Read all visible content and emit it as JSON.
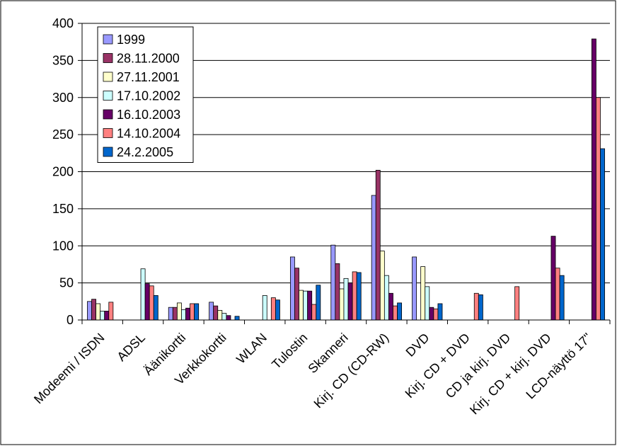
{
  "chart_data": {
    "type": "bar",
    "title": "",
    "xlabel": "",
    "ylabel": "",
    "ylim": [
      0,
      400
    ],
    "yticks": [
      0,
      50,
      100,
      150,
      200,
      250,
      300,
      350,
      400
    ],
    "grid": true,
    "legend_position": "top-left",
    "categories": [
      "Modeemi / ISDN",
      "ADSL",
      "Äänikortti",
      "Verkkokortti",
      "WLAN",
      "Tulostin",
      "Skanneri",
      "Kirj. CD (CD-RW)",
      "DVD",
      "Kirj. CD + DVD",
      "CD ja kirj. DVD",
      "Kirj. CD + kirj. DVD",
      "LCD-näyttö 17\""
    ],
    "series": [
      {
        "name": "1999",
        "color": "#9999ff",
        "values": [
          25,
          null,
          17,
          24,
          null,
          85,
          101,
          168,
          85,
          null,
          null,
          null,
          null
        ]
      },
      {
        "name": "28.11.2000",
        "color": "#993366",
        "values": [
          28,
          null,
          17,
          19,
          null,
          70,
          76,
          202,
          null,
          null,
          null,
          null,
          null
        ]
      },
      {
        "name": "27.11.2001",
        "color": "#ffffcc",
        "values": [
          22,
          null,
          23,
          13,
          null,
          40,
          42,
          93,
          72,
          null,
          null,
          null,
          null
        ]
      },
      {
        "name": "17.10.2002",
        "color": "#ccffff",
        "values": [
          12,
          69,
          14,
          9,
          33,
          39,
          56,
          60,
          45,
          null,
          null,
          null,
          null
        ]
      },
      {
        "name": "16.10.2003",
        "color": "#660066",
        "values": [
          12,
          49,
          16,
          6,
          null,
          39,
          50,
          36,
          17,
          null,
          null,
          113,
          379
        ]
      },
      {
        "name": "14.10.2004",
        "color": "#ff8080",
        "values": [
          24,
          46,
          22,
          0,
          30,
          21,
          65,
          19,
          15,
          36,
          45,
          70,
          300
        ]
      },
      {
        "name": "24.2.2005",
        "color": "#0066cc",
        "values": [
          null,
          33,
          22,
          5,
          27,
          47,
          64,
          23,
          22,
          34,
          null,
          60,
          231
        ]
      }
    ]
  }
}
